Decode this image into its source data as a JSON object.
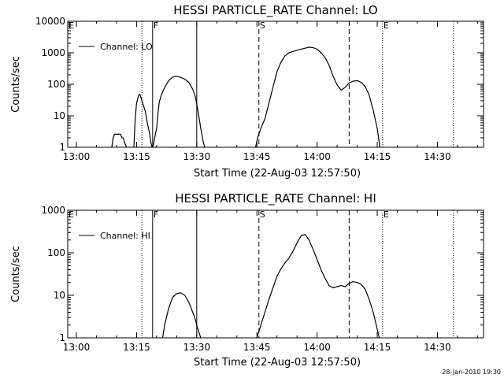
{
  "footer": {
    "timestamp": "28-Jan-2010 19:30"
  },
  "chart_data": [
    {
      "type": "line",
      "title": "HESSI PARTICLE_RATE Channel: LO",
      "xlabel": "Start Time (22-Aug-03 12:57:50)",
      "ylabel": "Counts/sec",
      "yscale": "log",
      "ylim": [
        1,
        10000
      ],
      "xlim": [
        "12:57:50",
        "14:41:30"
      ],
      "xticks": [
        "13:00",
        "13:15",
        "13:30",
        "13:45",
        "14:00",
        "14:15",
        "14:30"
      ],
      "yticks": [
        "1",
        "10",
        "100",
        "1000",
        "10000"
      ],
      "legend": {
        "position": "top-left",
        "entries": [
          "Channel: LO"
        ]
      },
      "markers": [
        {
          "time": "12:57:50",
          "style": "dotted",
          "label": "E"
        },
        {
          "time": "13:16:20",
          "style": "dotted",
          "label": ""
        },
        {
          "time": "13:19:00",
          "style": "solid",
          "label": "F"
        },
        {
          "time": "13:30:00",
          "style": "solid",
          "label": ""
        },
        {
          "time": "13:45:30",
          "style": "dashed",
          "label": "S"
        },
        {
          "time": "14:08:00",
          "style": "dashed",
          "label": ""
        },
        {
          "time": "14:16:20",
          "style": "dotted",
          "label": "E"
        },
        {
          "time": "14:34:00",
          "style": "dotted",
          "label": ""
        }
      ],
      "series": [
        {
          "name": "Channel: LO",
          "segments": [
            [
              [
                "13:08:50",
                1
              ],
              [
                "13:09:10",
                2
              ],
              [
                "13:09:30",
                2.6
              ],
              [
                "13:11:00",
                2.6
              ],
              [
                "13:11:20",
                2
              ],
              [
                "13:11:40",
                2
              ],
              [
                "13:12:00",
                1.4
              ],
              [
                "13:12:30",
                1
              ]
            ],
            [
              [
                "13:14:20",
                1
              ],
              [
                "13:14:40",
                8
              ],
              [
                "13:15:00",
                25
              ],
              [
                "13:15:30",
                45
              ],
              [
                "13:15:50",
                48
              ],
              [
                "13:16:10",
                35
              ],
              [
                "13:16:40",
                22
              ],
              [
                "13:17:10",
                14
              ],
              [
                "13:17:40",
                6
              ],
              [
                "13:18:10",
                3
              ],
              [
                "13:18:30",
                1.6
              ],
              [
                "13:18:50",
                1
              ],
              [
                "13:19:10",
                1.1
              ],
              [
                "13:19:30",
                2
              ],
              [
                "13:20:00",
                4
              ],
              [
                "13:20:20",
                12
              ],
              [
                "13:20:40",
                28
              ],
              [
                "13:21:10",
                45
              ],
              [
                "13:22:00",
                80
              ],
              [
                "13:23:00",
                130
              ],
              [
                "13:24:00",
                170
              ],
              [
                "13:25:00",
                180
              ],
              [
                "13:26:00",
                165
              ],
              [
                "13:27:00",
                145
              ],
              [
                "13:28:00",
                115
              ],
              [
                "13:29:00",
                70
              ],
              [
                "13:29:40",
                40
              ],
              [
                "13:30:20",
                14
              ],
              [
                "13:31:00",
                4
              ],
              [
                "13:31:40",
                1.4
              ],
              [
                "13:32:00",
                1
              ]
            ],
            [
              [
                "13:44:40",
                1
              ],
              [
                "13:45:10",
                2
              ],
              [
                "13:46:00",
                4
              ],
              [
                "13:47:00",
                8
              ],
              [
                "13:48:00",
                25
              ],
              [
                "13:49:00",
                80
              ],
              [
                "13:50:00",
                250
              ],
              [
                "13:51:00",
                500
              ],
              [
                "13:52:00",
                800
              ],
              [
                "13:53:00",
                1000
              ],
              [
                "13:54:00",
                1100
              ],
              [
                "13:55:00",
                1200
              ],
              [
                "13:56:00",
                1300
              ],
              [
                "13:57:00",
                1400
              ],
              [
                "13:58:00",
                1500
              ],
              [
                "13:59:00",
                1450
              ],
              [
                "14:00:00",
                1300
              ],
              [
                "14:01:00",
                1000
              ],
              [
                "14:02:00",
                700
              ],
              [
                "14:03:00",
                400
              ],
              [
                "14:04:00",
                180
              ],
              [
                "14:05:00",
                95
              ],
              [
                "14:06:00",
                65
              ],
              [
                "14:07:00",
                80
              ],
              [
                "14:08:00",
                110
              ],
              [
                "14:09:00",
                125
              ],
              [
                "14:10:00",
                130
              ],
              [
                "14:11:00",
                115
              ],
              [
                "14:12:00",
                85
              ],
              [
                "14:13:00",
                45
              ],
              [
                "14:14:00",
                15
              ],
              [
                "14:15:00",
                4
              ],
              [
                "14:15:40",
                1
              ]
            ]
          ]
        }
      ]
    },
    {
      "type": "line",
      "title": "HESSI PARTICLE_RATE Channel: HI",
      "xlabel": "Start Time (22-Aug-03 12:57:50)",
      "ylabel": "Counts/sec",
      "yscale": "log",
      "ylim": [
        1,
        1000
      ],
      "xlim": [
        "12:57:50",
        "14:41:30"
      ],
      "xticks": [
        "13:00",
        "13:15",
        "13:30",
        "13:45",
        "14:00",
        "14:15",
        "14:30"
      ],
      "yticks": [
        "1",
        "10",
        "100",
        "1000"
      ],
      "legend": {
        "position": "top-left",
        "entries": [
          "Channel: HI"
        ]
      },
      "markers": [
        {
          "time": "12:57:50",
          "style": "dotted",
          "label": "E"
        },
        {
          "time": "13:16:20",
          "style": "dotted",
          "label": ""
        },
        {
          "time": "13:19:00",
          "style": "solid",
          "label": "F"
        },
        {
          "time": "13:30:00",
          "style": "solid",
          "label": ""
        },
        {
          "time": "13:45:30",
          "style": "dashed",
          "label": "S"
        },
        {
          "time": "14:08:00",
          "style": "dashed",
          "label": ""
        },
        {
          "time": "14:16:20",
          "style": "dotted",
          "label": "E"
        },
        {
          "time": "14:34:00",
          "style": "dotted",
          "label": ""
        }
      ],
      "series": [
        {
          "name": "Channel: HI",
          "segments": [
            [
              [
                "13:21:30",
                1
              ],
              [
                "13:22:00",
                2
              ],
              [
                "13:23:00",
                5
              ],
              [
                "13:24:00",
                9
              ],
              [
                "13:25:00",
                11
              ],
              [
                "13:26:00",
                11.5
              ],
              [
                "13:27:00",
                10
              ],
              [
                "13:28:00",
                7
              ],
              [
                "13:29:00",
                4
              ],
              [
                "13:29:30",
                3
              ],
              [
                "13:30:00",
                2
              ],
              [
                "13:30:30",
                1.4
              ],
              [
                "13:31:00",
                1
              ]
            ],
            [
              [
                "13:45:00",
                1
              ],
              [
                "13:46:00",
                2
              ],
              [
                "13:47:00",
                4
              ],
              [
                "13:48:00",
                8
              ],
              [
                "13:49:00",
                15
              ],
              [
                "13:50:00",
                28
              ],
              [
                "13:51:00",
                42
              ],
              [
                "13:52:00",
                58
              ],
              [
                "13:53:00",
                75
              ],
              [
                "13:54:00",
                110
              ],
              [
                "13:55:00",
                170
              ],
              [
                "13:56:00",
                250
              ],
              [
                "13:57:00",
                270
              ],
              [
                "13:58:00",
                200
              ],
              [
                "13:59:00",
                120
              ],
              [
                "14:00:00",
                70
              ],
              [
                "14:01:00",
                40
              ],
              [
                "14:02:00",
                25
              ],
              [
                "14:03:00",
                17
              ],
              [
                "14:04:00",
                15
              ],
              [
                "14:05:00",
                16
              ],
              [
                "14:06:00",
                17
              ],
              [
                "14:07:00",
                16
              ],
              [
                "14:08:00",
                19
              ],
              [
                "14:09:00",
                21
              ],
              [
                "14:10:00",
                20
              ],
              [
                "14:11:00",
                18
              ],
              [
                "14:12:00",
                14
              ],
              [
                "14:13:00",
                8
              ],
              [
                "14:14:00",
                4
              ],
              [
                "14:15:00",
                1.6
              ],
              [
                "14:15:30",
                1
              ]
            ]
          ]
        }
      ]
    }
  ]
}
